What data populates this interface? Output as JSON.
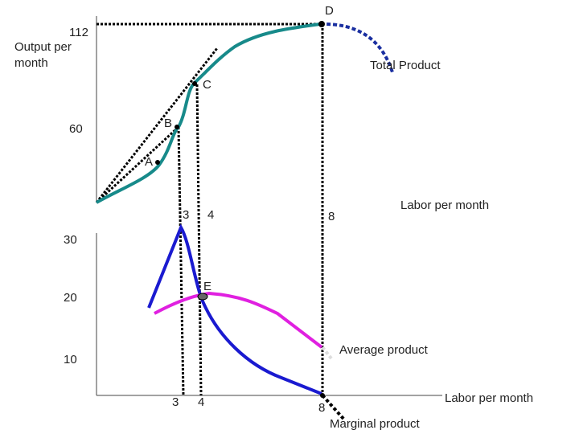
{
  "top_panel": {
    "y_labels": [
      "112",
      "60"
    ],
    "y_axis_title": [
      "Output per",
      "month"
    ],
    "points": [
      "A",
      "B",
      "C",
      "D"
    ],
    "curve_label": "Total Product",
    "x_labels": [
      "3",
      "4",
      "8"
    ],
    "x_axis_title": "Labor per month"
  },
  "bottom_panel": {
    "y_labels": [
      "30",
      "20",
      "10"
    ],
    "point": "E",
    "average_label": "Average product",
    "x_labels": [
      "3",
      "4",
      "8"
    ],
    "x_axis_title": "Labor per month",
    "marginal_label": "Marginal product"
  }
}
